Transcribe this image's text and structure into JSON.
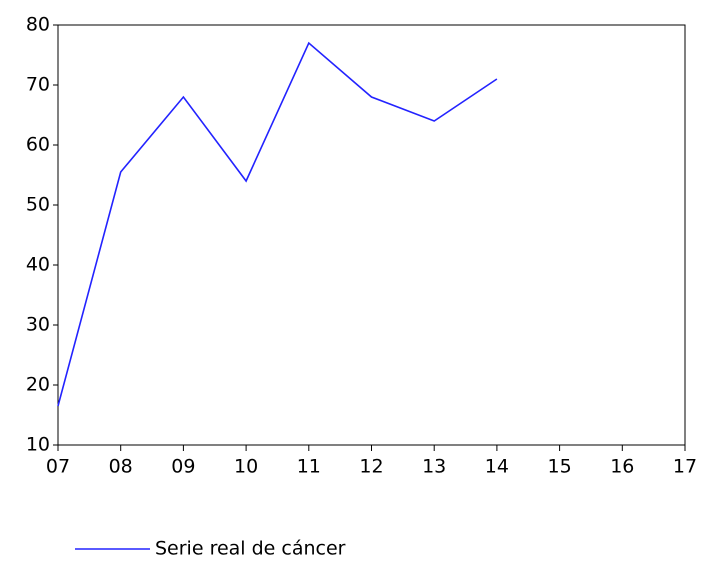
{
  "chart_data": {
    "type": "line",
    "x": [
      7,
      8,
      9,
      10,
      11,
      12,
      13,
      14
    ],
    "series": [
      {
        "name": "Serie real de cáncer",
        "color": "#2323ff",
        "values": [
          16.5,
          55.5,
          68,
          54,
          77,
          68,
          64,
          71
        ]
      }
    ],
    "xlim": [
      7,
      17
    ],
    "xticks": [
      {
        "value": 7,
        "label": "07"
      },
      {
        "value": 8,
        "label": "08"
      },
      {
        "value": 9,
        "label": "09"
      },
      10,
      11,
      12,
      13,
      14,
      15,
      16,
      17
    ],
    "ylim": [
      10,
      80
    ],
    "yticks": [
      10,
      20,
      30,
      40,
      50,
      60,
      70,
      80
    ],
    "grid": false,
    "legend": "bottom-left"
  }
}
